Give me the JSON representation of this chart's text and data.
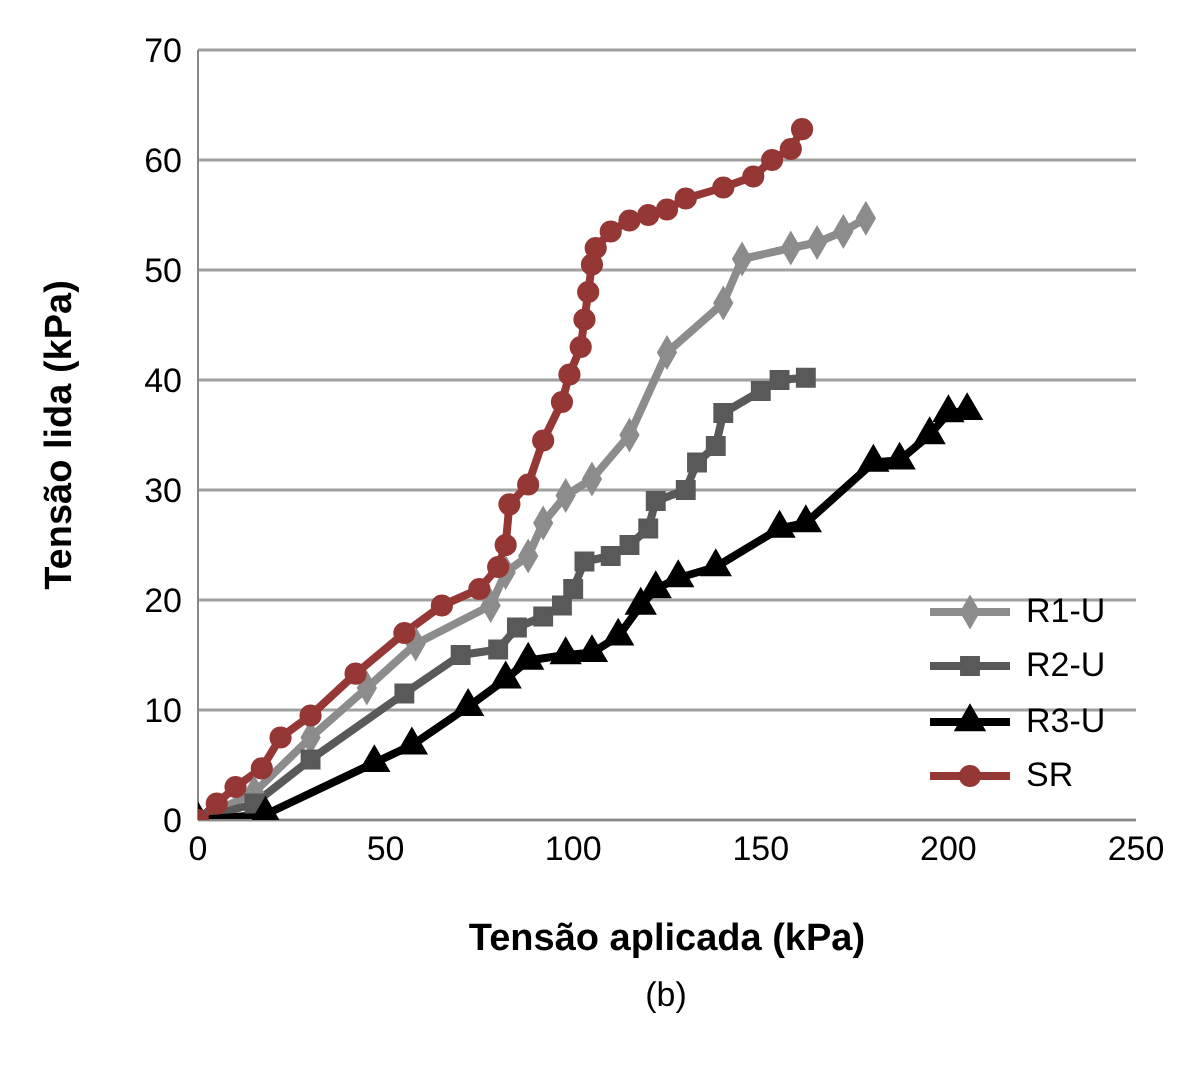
{
  "chart_data": {
    "type": "line",
    "xlabel": "Tensão aplicada (kPa)",
    "ylabel": "Tensão lida (kPa)",
    "annotations": [
      "(b)"
    ],
    "xlim": [
      0,
      250
    ],
    "xticks": [
      0,
      50,
      100,
      150,
      200,
      250
    ],
    "ylim": [
      0,
      70
    ],
    "yticks": [
      0,
      10,
      20,
      30,
      40,
      50,
      60,
      70
    ],
    "grid": "y",
    "legend": "bottom right",
    "series": [
      {
        "name": "R1-U",
        "color": "#8c8c8c",
        "marker": "diamond",
        "x": [
          0,
          15,
          30,
          45,
          58,
          78,
          82,
          88,
          92,
          98,
          105,
          115,
          125,
          140,
          145,
          158,
          165,
          172,
          178
        ],
        "values": [
          0,
          2.5,
          7.5,
          12,
          16,
          19.5,
          22.5,
          24,
          27,
          29.5,
          31,
          35,
          42.5,
          47,
          51,
          52,
          52.5,
          53.5,
          54.7
        ]
      },
      {
        "name": "R2-U",
        "color": "#595959",
        "marker": "square",
        "x": [
          0,
          15,
          30,
          55,
          70,
          80,
          85,
          92,
          97,
          100,
          103,
          110,
          115,
          120,
          122,
          130,
          133,
          138,
          140,
          150,
          155,
          162
        ],
        "values": [
          0,
          1.5,
          5.5,
          11.5,
          15,
          15.5,
          17.5,
          18.5,
          19.5,
          21,
          23.5,
          24,
          25,
          26.5,
          29,
          30,
          32.5,
          34,
          37,
          39,
          40,
          40.2
        ]
      },
      {
        "name": "R3-U",
        "color": "#000000",
        "marker": "triangle",
        "x": [
          0,
          18,
          47,
          57,
          72,
          82,
          88,
          98,
          105,
          112,
          118,
          122,
          128,
          138,
          155,
          162,
          180,
          187,
          195,
          200,
          205
        ],
        "values": [
          0,
          0.5,
          5.2,
          6.8,
          10.3,
          12.8,
          14.5,
          15,
          15.2,
          16.7,
          19.5,
          21,
          22,
          23,
          26.5,
          27,
          32.5,
          32.7,
          35,
          37,
          37.2
        ]
      },
      {
        "name": "SR",
        "color": "#953735",
        "marker": "circle",
        "x": [
          0,
          5,
          10,
          17,
          22,
          30,
          42,
          55,
          65,
          75,
          80,
          82,
          83,
          88,
          92,
          97,
          99,
          102,
          103,
          104,
          105,
          106,
          110,
          115,
          120,
          125,
          130,
          140,
          148,
          153,
          158,
          161
        ],
        "values": [
          0,
          1.5,
          3,
          4.7,
          7.5,
          9.5,
          13.3,
          17,
          19.5,
          21,
          23,
          25,
          28.7,
          30.5,
          34.5,
          38,
          40.5,
          43,
          45.5,
          48,
          50.5,
          52,
          53.5,
          54.5,
          55,
          55.5,
          56.5,
          57.5,
          58.5,
          60,
          61,
          62.8
        ]
      }
    ]
  }
}
